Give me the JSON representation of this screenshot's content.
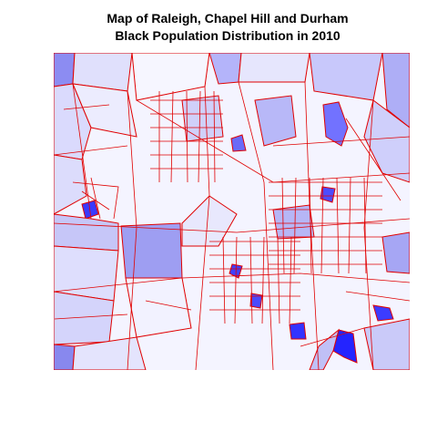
{
  "title": {
    "line1": "Map of Raleigh, Chapel Hill and Durham",
    "line2": "Black Population Distribution in 2010"
  }
}
